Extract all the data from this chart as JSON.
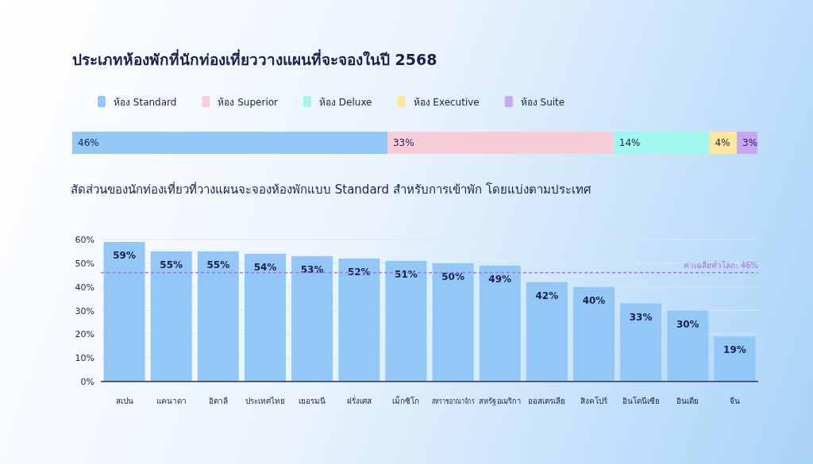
{
  "chart_data": [
    {
      "type": "bar",
      "title": "ประเภทห้องพักที่นักท่องเที่ยววางแผนที่จะจองในปี 2568",
      "orientation": "horizontal",
      "stacked": true,
      "categories": [
        null
      ],
      "legend": "top",
      "series": [
        {
          "name": "ห้อง Standard",
          "color": "#93c8f6",
          "values": [
            46
          ],
          "value_labels": [
            "46%"
          ]
        },
        {
          "name": "ห้อง Superior",
          "color": "#f8cdd8",
          "values": [
            33
          ],
          "value_labels": [
            "33%"
          ]
        },
        {
          "name": "ห้อง Deluxe",
          "color": "#a0f7ec",
          "values": [
            14
          ],
          "value_labels": [
            "14%"
          ]
        },
        {
          "name": "ห้อง Executive",
          "color": "#fde79a",
          "values": [
            4
          ],
          "value_labels": [
            "4%"
          ]
        },
        {
          "name": "ห้อง Suite",
          "color": "#c9a5f5",
          "values": [
            3
          ],
          "value_labels": [
            "3%"
          ]
        }
      ]
    },
    {
      "type": "bar",
      "title": "สัดส่วนของนักท่องเที่ยวที่วางแผนจะจองห้องพักแบบ Standard สำหรับการเข้าพัก โดยแบ่งตามประเทศ",
      "categories": [
        "สเปน",
        "แคนาดา",
        "อิตาลี",
        "ประเทศไทย",
        "เยอรมนี",
        "ฝรั่งเศส",
        "เม็กซิโก",
        "สหราชอาณาจักร",
        "สหรัฐอเมริกา",
        "ออสเตรเลีย",
        "สิงคโปร์",
        "อินโดนีเซีย",
        "อินเดีย",
        "จีน"
      ],
      "values": [
        59,
        55,
        55,
        54,
        53,
        52,
        51,
        50,
        49,
        42,
        40,
        33,
        30,
        19
      ],
      "value_labels": [
        "59%",
        "55%",
        "55%",
        "54%",
        "53%",
        "52%",
        "51%",
        "50%",
        "49%",
        "42%",
        "40%",
        "33%",
        "30%",
        "19%"
      ],
      "color": "#93c8f6",
      "ylim": [
        0,
        60
      ],
      "yticks": [
        {
          "value": 0,
          "label": "0%"
        },
        {
          "value": 10,
          "label": "10%"
        },
        {
          "value": 20,
          "label": "20%"
        },
        {
          "value": 30,
          "label": "30%"
        },
        {
          "value": 40,
          "label": "40%"
        },
        {
          "value": 50,
          "label": "50%"
        },
        {
          "value": 60,
          "label": "60%"
        }
      ],
      "grid": "y",
      "ref_lines": [
        {
          "axis": "y",
          "value": 46,
          "label": "ค่าเฉลี่ยทั่วโลก: 46%",
          "color": "#a66ef5",
          "line_style": "dashed"
        }
      ]
    }
  ]
}
